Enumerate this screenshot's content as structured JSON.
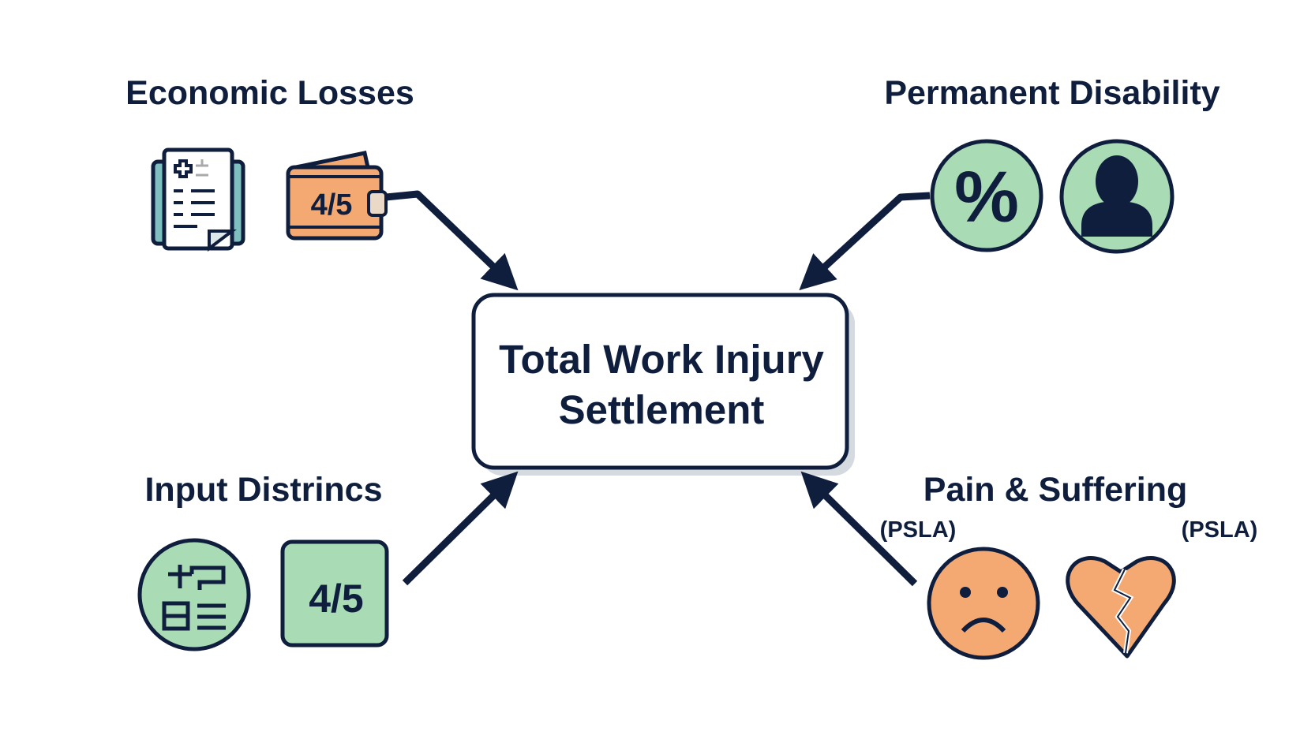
{
  "colors": {
    "navy": "#0f1e3d",
    "green": "#a9dcb5",
    "orange": "#f4a973",
    "teal": "#7fbfbf",
    "cream": "#ead9c6"
  },
  "center": {
    "line1": "Total Work Injury",
    "line2": "Settlement"
  },
  "groups": {
    "economic": {
      "title": "Economic Losses",
      "wallet_text": "4/5",
      "icons": [
        "medical-document-icon",
        "wallet-icon"
      ]
    },
    "disability": {
      "title": "Permanent Disability",
      "percent_text": "%",
      "icons": [
        "percent-icon",
        "person-icon"
      ]
    },
    "input": {
      "title": "Input Distrincs",
      "box_text": "4/5",
      "icons": [
        "calculator-form-icon",
        "rating-box-icon"
      ]
    },
    "pain": {
      "title": "Pain & Suffering",
      "note_left": "(PSLA)",
      "note_right": "(PSLA)",
      "icons": [
        "sad-face-icon",
        "broken-heart-icon"
      ]
    }
  }
}
